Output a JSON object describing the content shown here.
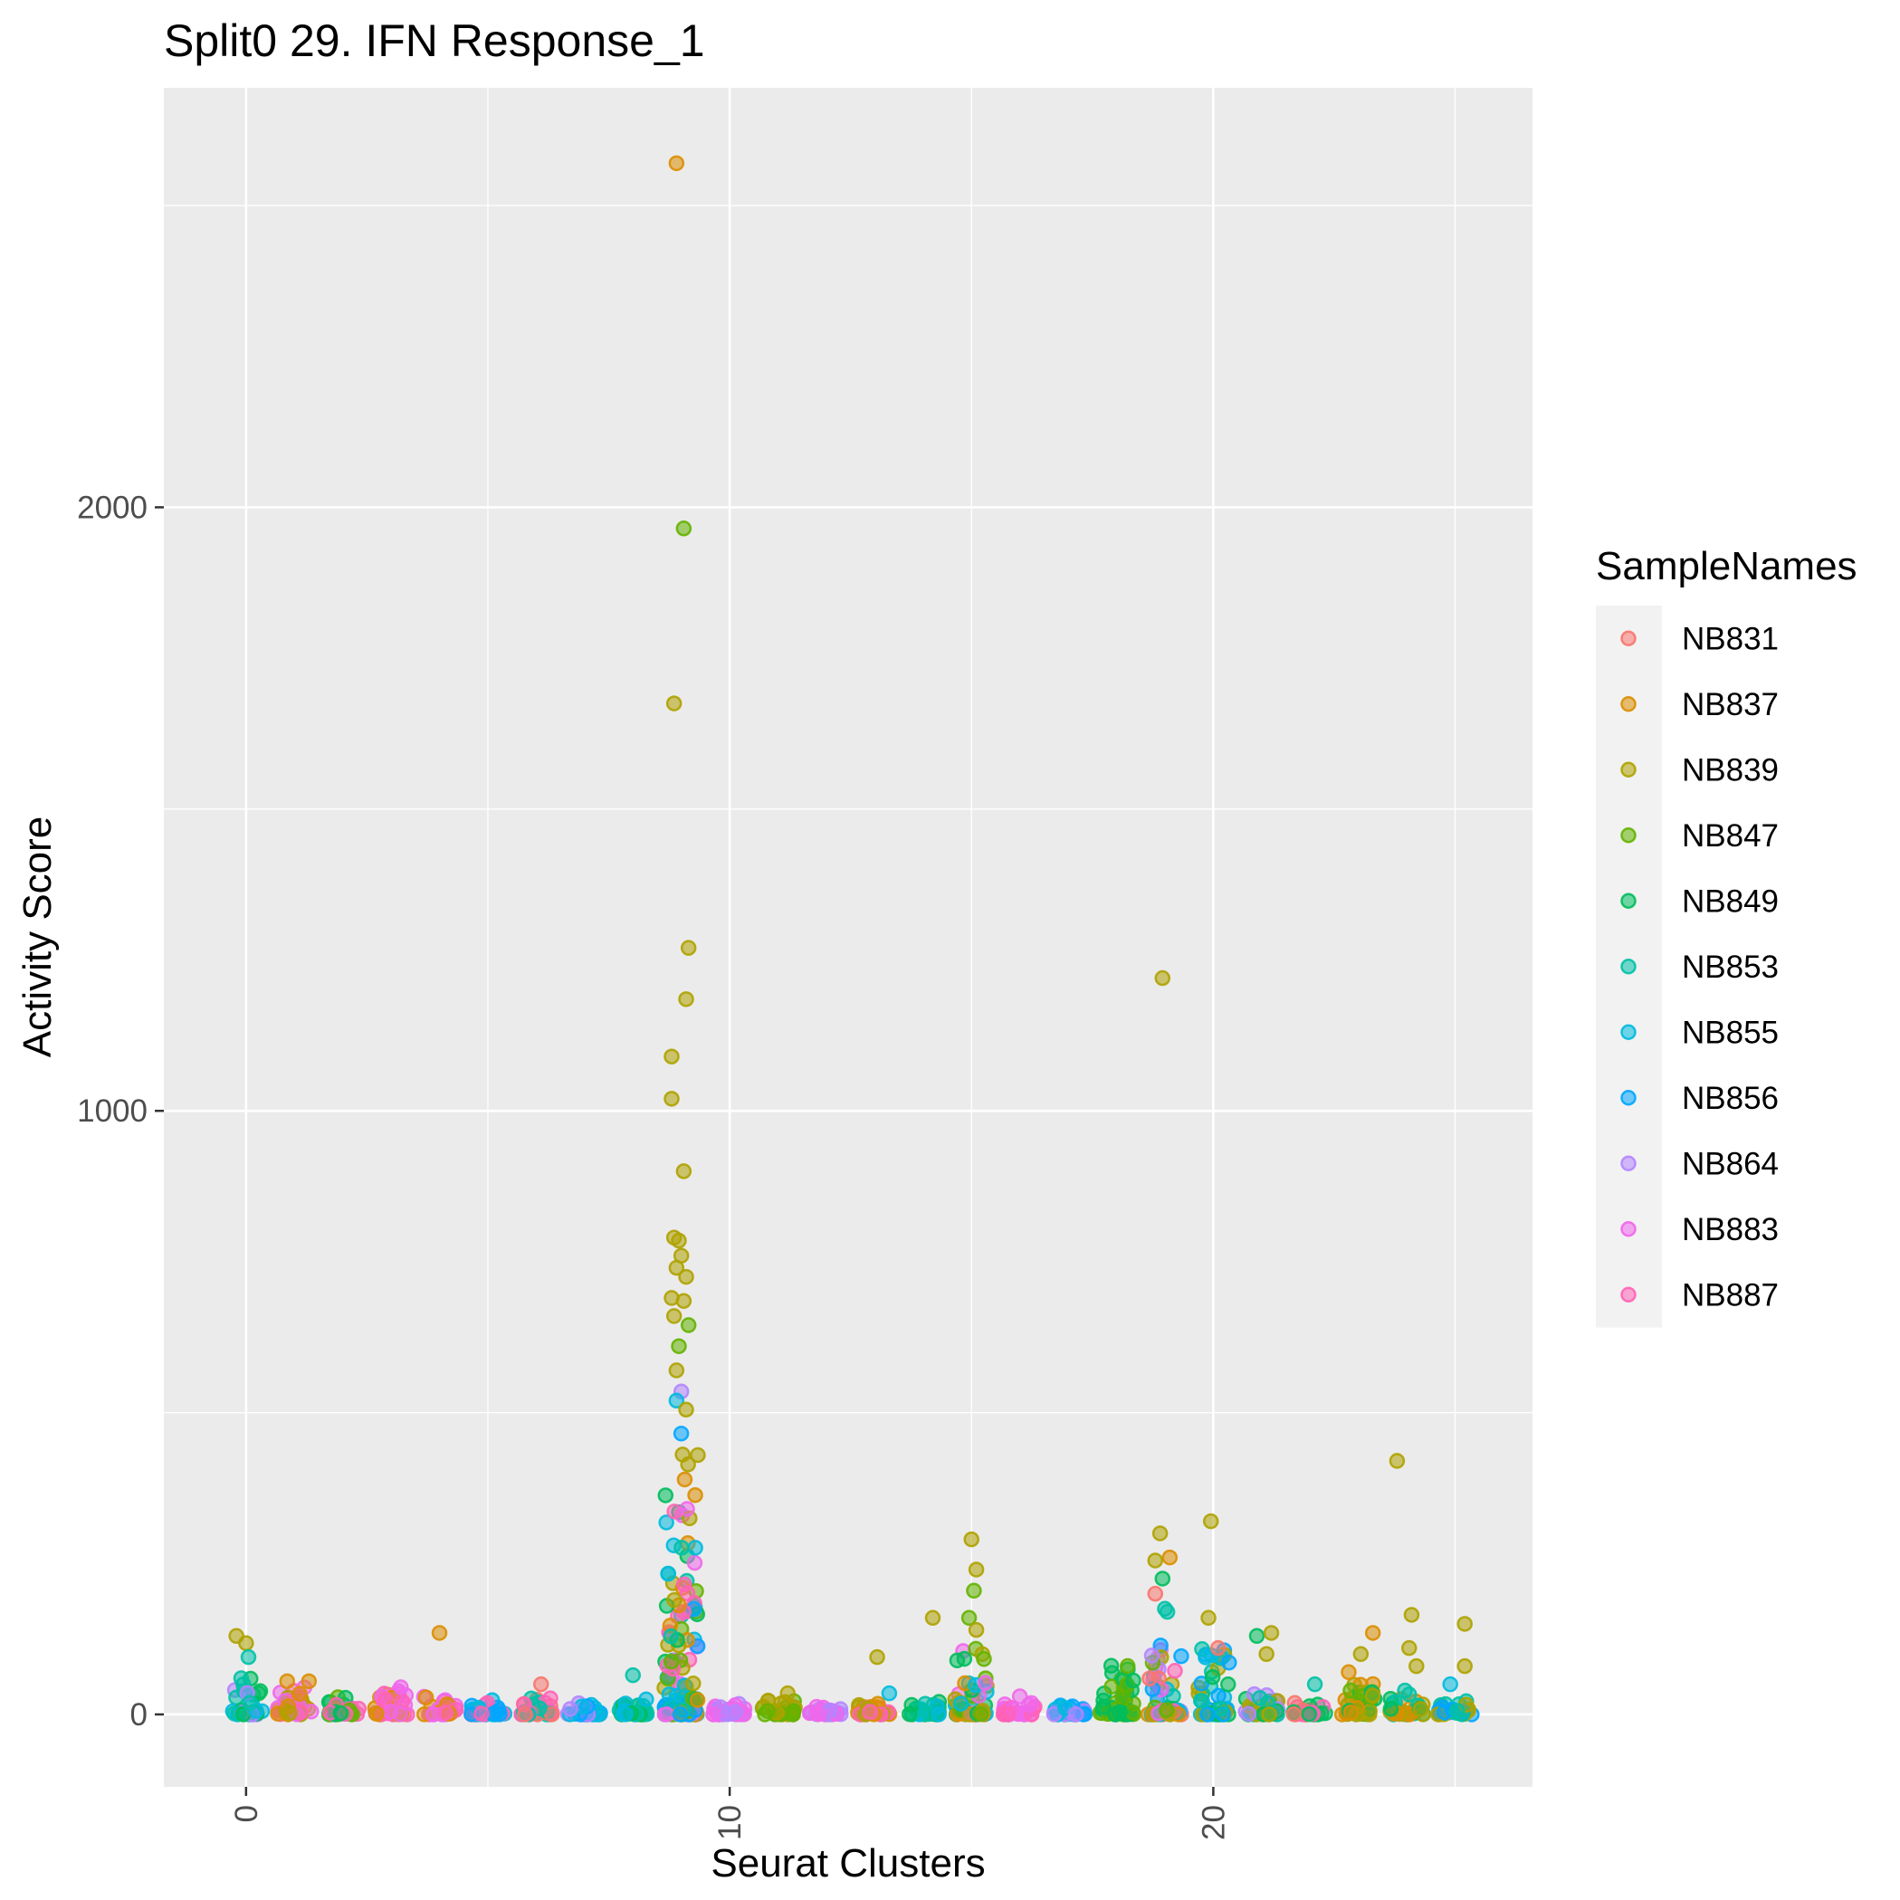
{
  "chart_data": {
    "type": "scatter",
    "title": "Split0 29. IFN Response_1",
    "xlabel": "Seurat Clusters",
    "ylabel": "Activity Score",
    "xlim": [
      -1.7,
      26.6
    ],
    "ylim": [
      -120,
      2695
    ],
    "x_ticks": [
      0,
      10,
      20
    ],
    "x_tick_labels": [
      "0",
      "10",
      "20"
    ],
    "y_ticks": [
      0,
      1000,
      2000
    ],
    "y_tick_labels": [
      "0",
      "1000",
      "2000"
    ],
    "grid": true,
    "legend": {
      "title": "SampleNames",
      "placement": "right"
    },
    "series": [
      {
        "name": "NB831",
        "color": "#F8766D"
      },
      {
        "name": "NB837",
        "color": "#DB8E00"
      },
      {
        "name": "NB839",
        "color": "#AEA200"
      },
      {
        "name": "NB847",
        "color": "#64B200"
      },
      {
        "name": "NB849",
        "color": "#00BD5C"
      },
      {
        "name": "NB853",
        "color": "#00C1A7"
      },
      {
        "name": "NB855",
        "color": "#00BADE"
      },
      {
        "name": "NB856",
        "color": "#00A6FF"
      },
      {
        "name": "NB864",
        "color": "#B385FF"
      },
      {
        "name": "NB883",
        "color": "#EF67EB"
      },
      {
        "name": "NB887",
        "color": "#FF63B6"
      }
    ],
    "clusters": [
      {
        "cluster": 0,
        "samples": [
          "NB853",
          "NB849",
          "NB855",
          "NB864"
        ],
        "max": 60,
        "outliers": [
          [
            -0.2,
            130,
            "NB839"
          ],
          [
            0.0,
            118,
            "NB839"
          ],
          [
            0.05,
            95,
            "NB853"
          ],
          [
            -0.1,
            60,
            "NB853"
          ]
        ]
      },
      {
        "cluster": 1,
        "samples": [
          "NB837",
          "NB839",
          "NB883",
          "NB887"
        ],
        "max": 45,
        "outliers": [
          [
            -0.15,
            55,
            "NB837"
          ],
          [
            0.3,
            55,
            "NB837"
          ]
        ]
      },
      {
        "cluster": 2,
        "samples": [
          "NB849",
          "NB847",
          "NB887"
        ],
        "max": 30,
        "outliers": []
      },
      {
        "cluster": 3,
        "samples": [
          "NB887",
          "NB883",
          "NB837"
        ],
        "max": 40,
        "outliers": [
          [
            0.2,
            45,
            "NB883"
          ]
        ]
      },
      {
        "cluster": 4,
        "samples": [
          "NB887",
          "NB883",
          "NB837"
        ],
        "max": 30,
        "outliers": [
          [
            0.0,
            135,
            "NB837"
          ]
        ]
      },
      {
        "cluster": 5,
        "samples": [
          "NB855",
          "NB856",
          "NB887"
        ],
        "max": 25,
        "outliers": []
      },
      {
        "cluster": 6,
        "samples": [
          "NB831",
          "NB853",
          "NB887"
        ],
        "max": 30,
        "outliers": [
          [
            0.1,
            50,
            "NB831"
          ]
        ]
      },
      {
        "cluster": 7,
        "samples": [
          "NB856",
          "NB855",
          "NB864"
        ],
        "max": 20,
        "outliers": []
      },
      {
        "cluster": 8,
        "samples": [
          "NB853",
          "NB849",
          "NB855"
        ],
        "max": 25,
        "outliers": [
          [
            0.0,
            65,
            "NB853"
          ]
        ]
      },
      {
        "cluster": 9,
        "samples": [
          "NB839",
          "NB847",
          "NB849",
          "NB853",
          "NB855",
          "NB856",
          "NB883",
          "NB887",
          "NB837"
        ],
        "max": 480,
        "outliers": [
          [
            -0.1,
            2570,
            "NB837"
          ],
          [
            0.05,
            1965,
            "NB847"
          ],
          [
            -0.15,
            1675,
            "NB839"
          ],
          [
            0.15,
            1270,
            "NB839"
          ],
          [
            0.1,
            1185,
            "NB839"
          ],
          [
            -0.2,
            1090,
            "NB839"
          ],
          [
            -0.2,
            1020,
            "NB839"
          ],
          [
            0.05,
            900,
            "NB839"
          ],
          [
            -0.15,
            790,
            "NB839"
          ],
          [
            -0.05,
            785,
            "NB839"
          ],
          [
            0.0,
            760,
            "NB839"
          ],
          [
            -0.1,
            740,
            "NB839"
          ],
          [
            0.1,
            725,
            "NB839"
          ],
          [
            -0.2,
            690,
            "NB839"
          ],
          [
            0.05,
            685,
            "NB839"
          ],
          [
            -0.15,
            660,
            "NB839"
          ],
          [
            0.15,
            645,
            "NB847"
          ],
          [
            -0.05,
            610,
            "NB847"
          ],
          [
            -0.1,
            570,
            "NB839"
          ],
          [
            0.0,
            535,
            "NB864"
          ],
          [
            -0.1,
            520,
            "NB855"
          ],
          [
            0.1,
            505,
            "NB839"
          ]
        ]
      },
      {
        "cluster": 10,
        "samples": [
          "NB864",
          "NB883"
        ],
        "max": 20,
        "outliers": []
      },
      {
        "cluster": 11,
        "samples": [
          "NB839",
          "NB847"
        ],
        "max": 25,
        "outliers": [
          [
            0.2,
            35,
            "NB839"
          ]
        ]
      },
      {
        "cluster": 12,
        "samples": [
          "NB864",
          "NB883"
        ],
        "max": 15,
        "outliers": []
      },
      {
        "cluster": 13,
        "samples": [
          "NB837",
          "NB839",
          "NB887"
        ],
        "max": 20,
        "outliers": [
          [
            0.05,
            95,
            "NB839"
          ],
          [
            0.3,
            35,
            "NB855"
          ]
        ]
      },
      {
        "cluster": 14,
        "samples": [
          "NB853",
          "NB849",
          "NB855"
        ],
        "max": 25,
        "outliers": [
          [
            0.2,
            160,
            "NB839"
          ]
        ]
      },
      {
        "cluster": 15,
        "samples": [
          "NB839",
          "NB847",
          "NB849",
          "NB837",
          "NB855",
          "NB883"
        ],
        "max": 120,
        "outliers": [
          [
            0.0,
            290,
            "NB839"
          ],
          [
            0.1,
            240,
            "NB839"
          ],
          [
            0.05,
            205,
            "NB847"
          ],
          [
            -0.05,
            160,
            "NB847"
          ],
          [
            0.1,
            140,
            "NB839"
          ]
        ]
      },
      {
        "cluster": 16,
        "samples": [
          "NB887",
          "NB883"
        ],
        "max": 20,
        "outliers": [
          [
            0.0,
            30,
            "NB883"
          ]
        ]
      },
      {
        "cluster": 17,
        "samples": [
          "NB856",
          "NB855",
          "NB864"
        ],
        "max": 15,
        "outliers": []
      },
      {
        "cluster": 18,
        "samples": [
          "NB847",
          "NB849"
        ],
        "max": 110,
        "outliers": []
      },
      {
        "cluster": 19,
        "samples": [
          "NB839",
          "NB847",
          "NB849",
          "NB853",
          "NB855",
          "NB856",
          "NB864",
          "NB883",
          "NB887",
          "NB831",
          "NB837"
        ],
        "max": 150,
        "outliers": [
          [
            -0.05,
            1220,
            "NB839"
          ],
          [
            -0.1,
            300,
            "NB839"
          ],
          [
            0.1,
            260,
            "NB837"
          ],
          [
            -0.2,
            255,
            "NB839"
          ],
          [
            -0.05,
            225,
            "NB849"
          ],
          [
            -0.2,
            200,
            "NB831"
          ],
          [
            0.0,
            175,
            "NB853"
          ],
          [
            0.05,
            170,
            "NB853"
          ]
        ]
      },
      {
        "cluster": 20,
        "samples": [
          "NB855",
          "NB856",
          "NB853",
          "NB849",
          "NB839"
        ],
        "max": 110,
        "outliers": [
          [
            -0.05,
            320,
            "NB839"
          ],
          [
            -0.1,
            160,
            "NB839"
          ],
          [
            0.1,
            110,
            "NB831"
          ]
        ]
      },
      {
        "cluster": 21,
        "samples": [
          "NB853",
          "NB849",
          "NB864",
          "NB839"
        ],
        "max": 40,
        "outliers": [
          [
            -0.1,
            130,
            "NB849"
          ],
          [
            0.2,
            135,
            "NB839"
          ],
          [
            0.1,
            100,
            "NB839"
          ]
        ]
      },
      {
        "cluster": 22,
        "samples": [
          "NB887",
          "NB831",
          "NB849"
        ],
        "max": 20,
        "outliers": [
          [
            0.1,
            50,
            "NB853"
          ]
        ]
      },
      {
        "cluster": 23,
        "samples": [
          "NB839",
          "NB837",
          "NB849",
          "NB847"
        ],
        "max": 60,
        "outliers": [
          [
            0.3,
            135,
            "NB837"
          ],
          [
            0.05,
            100,
            "NB839"
          ],
          [
            -0.2,
            70,
            "NB837"
          ]
        ]
      },
      {
        "cluster": 24,
        "samples": [
          "NB839",
          "NB837",
          "NB853",
          "NB849"
        ],
        "max": 40,
        "outliers": [
          [
            -0.2,
            420,
            "NB839"
          ],
          [
            0.1,
            165,
            "NB839"
          ],
          [
            0.05,
            110,
            "NB839"
          ],
          [
            0.2,
            80,
            "NB839"
          ]
        ]
      },
      {
        "cluster": 25,
        "samples": [
          "NB839",
          "NB856",
          "NB853"
        ],
        "max": 25,
        "outliers": [
          [
            0.2,
            150,
            "NB839"
          ],
          [
            0.2,
            80,
            "NB839"
          ],
          [
            -0.1,
            50,
            "NB855"
          ]
        ]
      }
    ]
  }
}
